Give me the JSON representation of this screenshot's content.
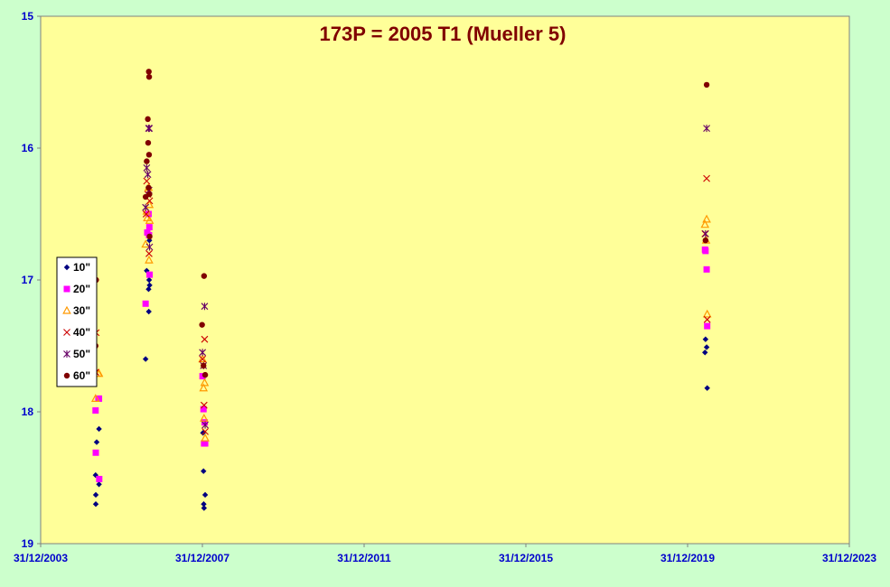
{
  "chart_data": {
    "type": "scatter",
    "title": "173P = 2005 T1 (Mueller 5)",
    "xlabel": "",
    "ylabel": "",
    "x_type": "date",
    "xlim": [
      "2003-12-31",
      "2023-12-31"
    ],
    "ylim": [
      19,
      15
    ],
    "y_inverted": true,
    "x_ticks": [
      "31/12/2003",
      "31/12/2007",
      "31/12/2011",
      "31/12/2015",
      "31/12/2019",
      "31/12/2023"
    ],
    "x_tick_dates": [
      "2003-12-31",
      "2007-12-31",
      "2011-12-31",
      "2015-12-31",
      "2019-12-31",
      "2023-12-31"
    ],
    "y_ticks": [
      "15",
      "16",
      "17",
      "18",
      "19"
    ],
    "y_tick_values": [
      15,
      16,
      17,
      18,
      19
    ],
    "grid": false,
    "plot_background": "#ffff99",
    "figure_background": "#ccffcc",
    "legend_position": "left",
    "series": [
      {
        "name": "10\"",
        "marker": "diamond",
        "color": "#000080",
        "points": [
          [
            "2005-05-12",
            18.7
          ],
          [
            "2005-05-12",
            18.63
          ],
          [
            "2005-05-10",
            18.48
          ],
          [
            "2005-05-20",
            18.23
          ],
          [
            "2005-06-10",
            18.55
          ],
          [
            "2005-06-10",
            18.13
          ],
          [
            "2006-08-05",
            17.6
          ],
          [
            "2006-08-15",
            16.93
          ],
          [
            "2006-09-01",
            17.07
          ],
          [
            "2006-09-03",
            17.24
          ],
          [
            "2006-09-10",
            17.04
          ],
          [
            "2006-09-06",
            17.0
          ],
          [
            "2006-09-08",
            16.7
          ],
          [
            "2008-01-05",
            18.16
          ],
          [
            "2008-01-10",
            18.45
          ],
          [
            "2008-01-12",
            18.7
          ],
          [
            "2008-01-15",
            18.73
          ],
          [
            "2008-01-25",
            18.63
          ],
          [
            "2020-06-05",
            17.55
          ],
          [
            "2020-06-10",
            17.45
          ],
          [
            "2020-06-20",
            17.51
          ],
          [
            "2020-06-25",
            17.82
          ]
        ]
      },
      {
        "name": "20\"",
        "marker": "square",
        "color": "#ff00ff",
        "points": [
          [
            "2005-05-10",
            17.99
          ],
          [
            "2005-05-12",
            18.31
          ],
          [
            "2005-06-05",
            17.9
          ],
          [
            "2005-06-10",
            17.9
          ],
          [
            "2005-06-12",
            18.51
          ],
          [
            "2006-08-05",
            17.18
          ],
          [
            "2006-08-20",
            16.64
          ],
          [
            "2006-09-01",
            16.5
          ],
          [
            "2006-09-05",
            16.66
          ],
          [
            "2006-09-08",
            16.6
          ],
          [
            "2006-09-10",
            16.96
          ],
          [
            "2008-01-01",
            17.73
          ],
          [
            "2008-01-10",
            17.98
          ],
          [
            "2008-01-15",
            18.24
          ],
          [
            "2008-01-20",
            18.08
          ],
          [
            "2008-01-25",
            18.24
          ],
          [
            "2020-06-05",
            16.77
          ],
          [
            "2020-06-10",
            16.78
          ],
          [
            "2020-06-20",
            16.92
          ],
          [
            "2020-06-25",
            17.35
          ]
        ]
      },
      {
        "name": "30\"",
        "marker": "triangle",
        "color": "#ff9900",
        "points": [
          [
            "2005-05-10",
            17.9
          ],
          [
            "2005-06-05",
            17.71
          ],
          [
            "2005-06-10",
            17.71
          ],
          [
            "2006-08-05",
            16.73
          ],
          [
            "2006-08-15",
            16.48
          ],
          [
            "2006-08-20",
            16.53
          ],
          [
            "2006-09-01",
            16.3
          ],
          [
            "2006-09-05",
            16.85
          ],
          [
            "2006-09-10",
            16.55
          ],
          [
            "2006-09-08",
            16.43
          ],
          [
            "2008-01-01",
            17.6
          ],
          [
            "2008-01-10",
            17.82
          ],
          [
            "2008-01-15",
            18.05
          ],
          [
            "2008-01-20",
            17.78
          ],
          [
            "2008-01-25",
            18.2
          ],
          [
            "2020-06-05",
            16.58
          ],
          [
            "2020-06-20",
            16.54
          ],
          [
            "2020-06-25",
            17.26
          ],
          [
            "2020-06-15",
            16.7
          ]
        ]
      },
      {
        "name": "40\"",
        "marker": "x",
        "color": "#cc0000",
        "points": [
          [
            "2005-05-15",
            17.4
          ],
          [
            "2005-05-12",
            17.7
          ],
          [
            "2006-08-10",
            16.5
          ],
          [
            "2006-08-15",
            16.25
          ],
          [
            "2006-08-25",
            16.35
          ],
          [
            "2006-09-05",
            16.8
          ],
          [
            "2006-09-10",
            16.4
          ],
          [
            "2008-01-01",
            17.6
          ],
          [
            "2008-01-15",
            17.95
          ],
          [
            "2008-01-20",
            17.45
          ],
          [
            "2008-01-25",
            18.15
          ],
          [
            "2020-06-05",
            16.65
          ],
          [
            "2020-06-20",
            16.23
          ],
          [
            "2020-06-25",
            17.3
          ]
        ]
      },
      {
        "name": "50\"",
        "marker": "star",
        "color": "#660066",
        "points": [
          [
            "2006-08-05",
            16.45
          ],
          [
            "2006-08-15",
            16.15
          ],
          [
            "2006-08-25",
            16.2
          ],
          [
            "2006-09-01",
            15.85
          ],
          [
            "2006-09-05",
            16.32
          ],
          [
            "2006-09-10",
            16.75
          ],
          [
            "2006-09-08",
            15.85
          ],
          [
            "2008-01-01",
            17.55
          ],
          [
            "2008-01-10",
            17.65
          ],
          [
            "2008-01-20",
            17.2
          ],
          [
            "2008-01-25",
            18.1
          ],
          [
            "2020-06-10",
            16.65
          ],
          [
            "2020-06-20",
            15.85
          ]
        ]
      },
      {
        "name": "60\"",
        "marker": "circle",
        "color": "#800000",
        "points": [
          [
            "2005-05-15",
            17.0
          ],
          [
            "2005-05-10",
            17.5
          ],
          [
            "2006-08-05",
            16.37
          ],
          [
            "2006-08-15",
            16.1
          ],
          [
            "2006-08-25",
            15.78
          ],
          [
            "2006-08-28",
            15.96
          ],
          [
            "2006-09-01",
            16.3
          ],
          [
            "2006-09-05",
            16.05
          ],
          [
            "2006-09-08",
            16.35
          ],
          [
            "2006-09-03",
            15.42
          ],
          [
            "2006-09-06",
            15.46
          ],
          [
            "2006-09-10",
            16.67
          ],
          [
            "2007-12-28",
            17.34
          ],
          [
            "2008-01-10",
            17.65
          ],
          [
            "2008-01-15",
            16.97
          ],
          [
            "2008-01-25",
            17.72
          ],
          [
            "2020-06-10",
            16.7
          ],
          [
            "2020-06-20",
            15.52
          ]
        ]
      }
    ]
  }
}
